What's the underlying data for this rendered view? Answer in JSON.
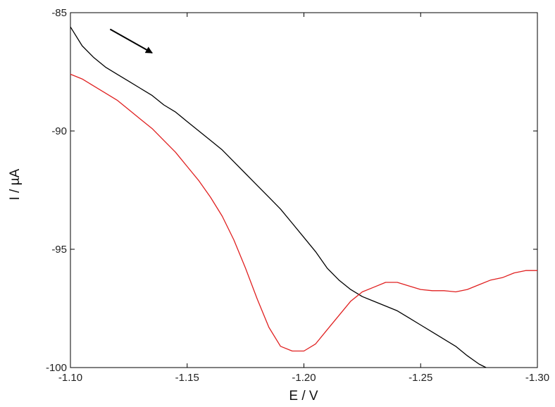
{
  "chart_data": {
    "type": "line",
    "title": "",
    "xlabel": "E / V",
    "ylabel": "I / µA",
    "xlim": [
      -1.1,
      -1.3
    ],
    "ylim": [
      -100,
      -85
    ],
    "x_reversed": true,
    "grid": false,
    "x_ticks": [
      -1.1,
      -1.15,
      -1.2,
      -1.25,
      -1.3
    ],
    "x_tick_labels": [
      "-1.10",
      "-1.15",
      "-1.20",
      "-1.25",
      "-1.30"
    ],
    "y_ticks": [
      -85,
      -90,
      -95,
      -100
    ],
    "y_tick_labels": [
      "-85",
      "-90",
      "-95",
      "-100"
    ],
    "annotations": [
      {
        "kind": "arrow",
        "direction": "down-right",
        "meaning": "scan direction",
        "from": [
          -1.117,
          -85.7
        ],
        "to": [
          -1.135,
          -86.7
        ]
      }
    ],
    "series": [
      {
        "color": "#000000",
        "x": [
          -1.1,
          -1.105,
          -1.11,
          -1.115,
          -1.12,
          -1.125,
          -1.13,
          -1.135,
          -1.14,
          -1.145,
          -1.15,
          -1.155,
          -1.16,
          -1.165,
          -1.17,
          -1.175,
          -1.18,
          -1.185,
          -1.19,
          -1.195,
          -1.2,
          -1.205,
          -1.21,
          -1.215,
          -1.22,
          -1.225,
          -1.23,
          -1.235,
          -1.24,
          -1.245,
          -1.25,
          -1.255,
          -1.26,
          -1.265,
          -1.27,
          -1.275,
          -1.278
        ],
        "y": [
          -85.6,
          -86.4,
          -86.9,
          -87.3,
          -87.6,
          -87.9,
          -88.2,
          -88.5,
          -88.9,
          -89.2,
          -89.6,
          -90.0,
          -90.4,
          -90.8,
          -91.3,
          -91.8,
          -92.3,
          -92.8,
          -93.3,
          -93.9,
          -94.5,
          -95.1,
          -95.8,
          -96.3,
          -96.7,
          -97.0,
          -97.2,
          -97.4,
          -97.6,
          -97.9,
          -98.2,
          -98.5,
          -98.8,
          -99.1,
          -99.5,
          -99.85,
          -100.0
        ]
      },
      {
        "color": "#e02020",
        "x": [
          -1.1,
          -1.105,
          -1.11,
          -1.115,
          -1.12,
          -1.125,
          -1.13,
          -1.135,
          -1.14,
          -1.145,
          -1.15,
          -1.155,
          -1.16,
          -1.165,
          -1.17,
          -1.175,
          -1.18,
          -1.185,
          -1.19,
          -1.195,
          -1.2,
          -1.205,
          -1.21,
          -1.215,
          -1.22,
          -1.225,
          -1.23,
          -1.235,
          -1.24,
          -1.245,
          -1.25,
          -1.255,
          -1.26,
          -1.265,
          -1.27,
          -1.275,
          -1.28,
          -1.285,
          -1.29,
          -1.295,
          -1.3
        ],
        "y": [
          -87.6,
          -87.8,
          -88.1,
          -88.4,
          -88.7,
          -89.1,
          -89.5,
          -89.9,
          -90.4,
          -90.9,
          -91.5,
          -92.1,
          -92.8,
          -93.6,
          -94.6,
          -95.8,
          -97.1,
          -98.3,
          -99.1,
          -99.3,
          -99.3,
          -99.0,
          -98.4,
          -97.8,
          -97.2,
          -96.8,
          -96.6,
          -96.4,
          -96.4,
          -96.55,
          -96.7,
          -96.75,
          -96.75,
          -96.8,
          -96.7,
          -96.5,
          -96.3,
          -96.2,
          -96.0,
          -95.9,
          -95.9
        ]
      }
    ]
  }
}
